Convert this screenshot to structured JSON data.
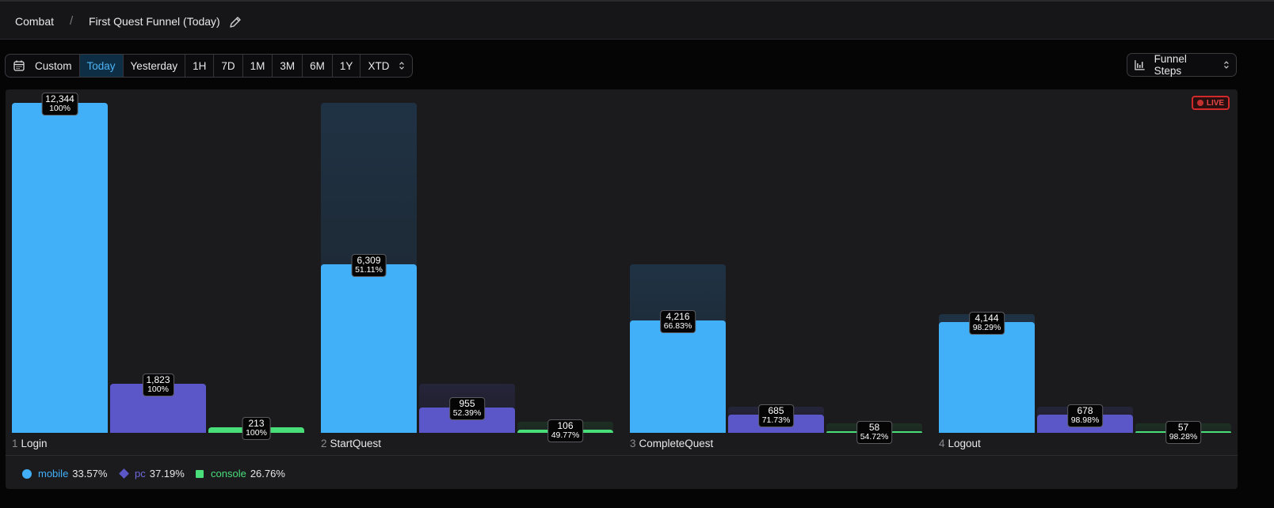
{
  "breadcrumb": {
    "root": "Combat",
    "separator": "/",
    "title": "First Quest Funnel (Today)"
  },
  "range_buttons": [
    "Custom",
    "Today",
    "Yesterday",
    "1H",
    "7D",
    "1M",
    "3M",
    "6M",
    "1Y",
    "XTD"
  ],
  "active_range": "Today",
  "view_select": {
    "label": "Funnel Steps"
  },
  "live_badge": "LIVE",
  "colors": {
    "mobile": "#41b0f8",
    "pc": "#5b57c9",
    "console": "#4ade7b",
    "accent": "#4cb4f6",
    "live": "#d22a2a"
  },
  "chart_data": {
    "type": "bar",
    "categories": [
      "Login",
      "StartQuest",
      "CompleteQuest",
      "Logout"
    ],
    "step_numbers": [
      "1",
      "2",
      "3",
      "4"
    ],
    "series": [
      {
        "name": "mobile",
        "values": [
          12344,
          6309,
          4216,
          4144
        ],
        "labels": [
          "12,344",
          "6,309",
          "4,216",
          "4,144"
        ],
        "percents": [
          "100%",
          "51.11%",
          "66.83%",
          "98.29%"
        ]
      },
      {
        "name": "pc",
        "values": [
          1823,
          955,
          685,
          678
        ],
        "labels": [
          "1,823",
          "955",
          "685",
          "678"
        ],
        "percents": [
          "100%",
          "52.39%",
          "71.73%",
          "98.98%"
        ]
      },
      {
        "name": "console",
        "values": [
          213,
          106,
          58,
          57
        ],
        "labels": [
          "213",
          "106",
          "58",
          "57"
        ],
        "percents": [
          "100%",
          "49.77%",
          "54.72%",
          "98.28%"
        ]
      }
    ],
    "legend": [
      {
        "name": "mobile",
        "share": "33.57%",
        "marker": "circle"
      },
      {
        "name": "pc",
        "share": "37.19%",
        "marker": "diamond"
      },
      {
        "name": "console",
        "share": "26.76%",
        "marker": "square"
      }
    ],
    "ylim": [
      0,
      12344
    ]
  }
}
